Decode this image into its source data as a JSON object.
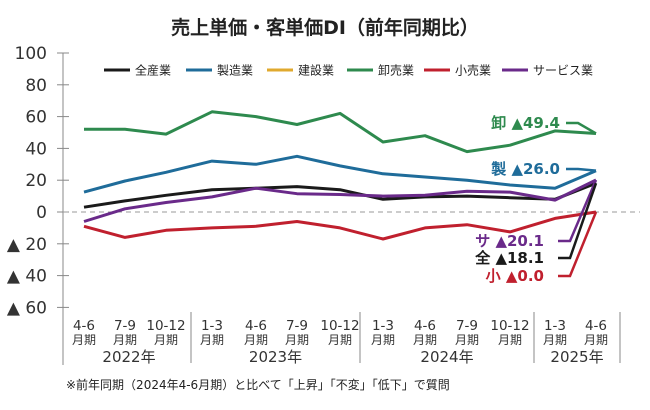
{
  "chart_data": {
    "type": "line",
    "title": "売上単価・客単価DI（前年同期比）",
    "xlabel": "",
    "ylabel": "",
    "ylim": [
      -60,
      100
    ],
    "yticks": [
      100,
      80,
      60,
      40,
      20,
      0,
      -20,
      -40,
      -60
    ],
    "ytick_labels": [
      "100",
      "80",
      "60",
      "40",
      "20",
      "0",
      "▲ 20",
      "▲ 40",
      "▲ 60"
    ],
    "grid": false,
    "zero_line": "dashed",
    "legend_position": "top",
    "categories": [
      "4-6",
      "7-9",
      "10-12",
      "1-3",
      "4-6",
      "7-9",
      "10-12",
      "1-3",
      "4-6",
      "7-9",
      "10-12",
      "1-3",
      "4-6"
    ],
    "category_suffix": "月期",
    "year_groups": [
      {
        "label": "2022年",
        "count": 3
      },
      {
        "label": "2023年",
        "count": 4
      },
      {
        "label": "2024年",
        "count": 4
      },
      {
        "label": "2025年",
        "count": 2
      }
    ],
    "series": [
      {
        "name": "全産業",
        "color": "#1a1a1a",
        "values": [
          3,
          7,
          10.5,
          14,
          15,
          16,
          14,
          8,
          9.5,
          10,
          9,
          8,
          18.1
        ]
      },
      {
        "name": "製造業",
        "color": "#1f6c9a",
        "values": [
          12.5,
          19.5,
          25,
          32,
          30,
          35,
          29,
          24,
          22,
          20,
          17,
          15,
          26.0
        ]
      },
      {
        "name": "建設業",
        "color": "#e0a92e",
        "values": []
      },
      {
        "name": "卸売業",
        "color": "#2e8a4e",
        "values": [
          52,
          52,
          49,
          63,
          60,
          55,
          62,
          44,
          48,
          38,
          42,
          51,
          49.4
        ]
      },
      {
        "name": "小売業",
        "color": "#c0202e",
        "values": [
          -9,
          -16,
          -11.5,
          -10,
          -9,
          -6,
          -10,
          -17,
          -10,
          -8,
          -12.5,
          -4,
          0.0
        ]
      },
      {
        "name": "サービス業",
        "color": "#6a2a8a",
        "values": [
          -6,
          2,
          6,
          9.5,
          15,
          11.5,
          11,
          10,
          10.5,
          13,
          12.5,
          7.5,
          20.1
        ]
      }
    ],
    "end_labels": [
      {
        "series": "卸売業",
        "text": "卸 ▲49.4",
        "color": "#2e8a4e"
      },
      {
        "series": "製造業",
        "text": "製 ▲26.0",
        "color": "#1f6c9a"
      },
      {
        "series": "サービス業",
        "text": "サ ▲20.1",
        "color": "#6a2a8a"
      },
      {
        "series": "全産業",
        "text": "全 ▲18.1",
        "color": "#1a1a1a"
      },
      {
        "series": "小売業",
        "text": "小 ▲0.0",
        "color": "#c0202e"
      }
    ],
    "note": "※前年同期（2024年4-6月期）と比べて「上昇」「不変」「低下」で質問"
  }
}
